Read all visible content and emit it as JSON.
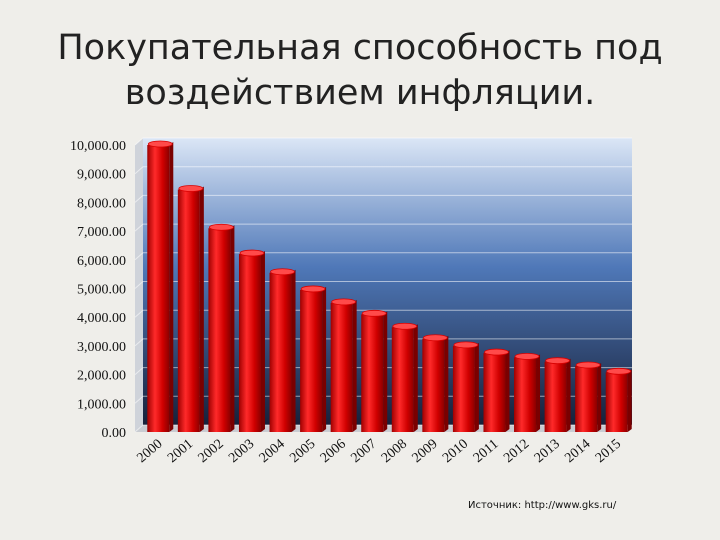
{
  "slide": {
    "title_line1": "Покупательная способность под",
    "title_line2": "воздействием инфляции.",
    "source": "Источник: http://www.gks.ru/"
  },
  "colors": {
    "bar": "#d80000",
    "bar_dark": "#7a0000",
    "bar_top": "#ff4a4a",
    "plot_top": "#dbe6f6",
    "plot_bottom": "#17213a"
  },
  "chart_data": {
    "type": "bar",
    "title": "Покупательная способность под воздействием инфляции.",
    "categories": [
      "2000",
      "2001",
      "2002",
      "2003",
      "2004",
      "2005",
      "2006",
      "2007",
      "2008",
      "2009",
      "2010",
      "2011",
      "2012",
      "2013",
      "2014",
      "2015"
    ],
    "values": [
      10000,
      8450,
      7100,
      6200,
      5550,
      4950,
      4500,
      4100,
      3650,
      3250,
      3000,
      2750,
      2600,
      2450,
      2300,
      2080
    ],
    "y_ticks": [
      "0.00",
      "1,000.00",
      "2,000.00",
      "3,000.00",
      "4,000.00",
      "5,000.00",
      "6,000.00",
      "7,000.00",
      "8,000.00",
      "9,000.00",
      "10,000.00"
    ],
    "ylim": [
      0,
      10000
    ],
    "grid": true,
    "legend": "none",
    "xlabel": "",
    "ylabel": ""
  }
}
